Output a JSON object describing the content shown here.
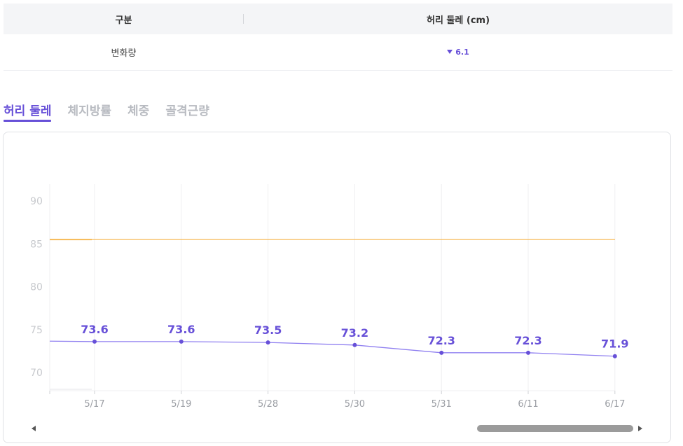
{
  "summary": {
    "header": {
      "col1": "구분",
      "col2": "허리 둘레 (cm)"
    },
    "row": {
      "label": "변화량",
      "change_value": "6.1",
      "change_direction": "down"
    }
  },
  "tabs": [
    {
      "label": "허리 둘레",
      "active": true
    },
    {
      "label": "체지방률",
      "active": false
    },
    {
      "label": "체중",
      "active": false
    },
    {
      "label": "골격근량",
      "active": false
    }
  ],
  "colors": {
    "accent": "#6750d8",
    "reference_line": "#f7b955",
    "grid": "#efeff1"
  },
  "chart_data": {
    "type": "line",
    "categories": [
      "5/17",
      "5/19",
      "5/28",
      "5/30",
      "5/31",
      "6/11",
      "6/17"
    ],
    "values": [
      73.6,
      73.6,
      73.5,
      73.2,
      72.3,
      72.3,
      71.9
    ],
    "data_labels": [
      "73.6",
      "73.6",
      "73.5",
      "73.2",
      "72.3",
      "72.3",
      "71.9"
    ],
    "yticks": [
      "90",
      "85",
      "80",
      "75",
      "70"
    ],
    "ytick_values": [
      90,
      85,
      80,
      75,
      70
    ],
    "ylim": [
      68,
      92
    ],
    "reference_value": 85.5,
    "line_start_value": 73.65,
    "grid": true
  },
  "scrollbar": {
    "thumb_fraction": 0.26,
    "position": "end"
  }
}
